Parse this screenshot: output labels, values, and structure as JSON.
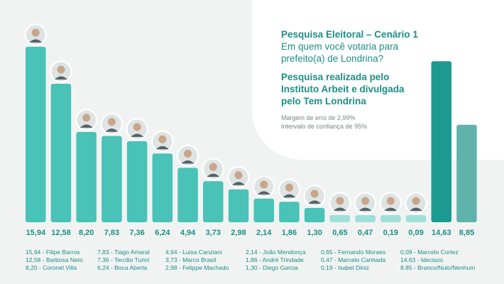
{
  "header": {
    "title": "Pesquisa Eleitoral – Cenário 1",
    "question_line1": "Em quem você votaria para",
    "question_line2": "prefeito(a) de Londrina?",
    "source_line1": "Pesquisa realizada pelo",
    "source_line2": "Instituto Arbeit e divulgada",
    "source_line3": "pelo Tem Londrina",
    "margin": "Margem de erro de 2,99%",
    "confidence": "Intervalo de confiança de 95%"
  },
  "colors": {
    "bar_candidate": "#49c2b7",
    "bar_undecided": "#1c9a8f",
    "bar_blank": "#5fb3ab",
    "text_teal": "#1c8e86"
  },
  "chart_data": {
    "type": "bar",
    "categories": [
      "Filipe Barros",
      "Barbosa Neto",
      "Coronel Villa",
      "Tiago Amaral",
      "Tercilio Turini",
      "Boca Aberta",
      "Luisa Canziani",
      "Marco Brasil",
      "Felippe Machado",
      "João Mendonça",
      "André Trindade",
      "Diego Garcia",
      "Fernando Moraes",
      "Marcelo Canhada",
      "Isabel Diniz",
      "Marcelo Cortez",
      "Idecisos",
      "Branco/Nulo/Nenhum"
    ],
    "values": [
      15.94,
      12.58,
      8.2,
      7.83,
      7.36,
      6.24,
      4.94,
      3.73,
      2.98,
      2.14,
      1.86,
      1.3,
      0.65,
      0.47,
      0.19,
      0.09,
      14.63,
      8.85
    ],
    "value_labels": [
      "15,94",
      "12,58",
      "8,20",
      "7,83",
      "7,36",
      "6,24",
      "4,94",
      "3,73",
      "2,98",
      "2,14",
      "1,86",
      "1,30",
      "0,65",
      "0,47",
      "0,19",
      "0,09",
      "14,63",
      "8,85"
    ],
    "title": "Pesquisa Eleitoral – Cenário 1",
    "xlabel": "",
    "ylabel": "",
    "ylim": [
      0,
      16
    ],
    "grid": false
  },
  "legend": {
    "columns": [
      [
        "15,94 - Filipe Barros",
        "12,58 - Barbosa Neto",
        "8,20 - Coronel Villa"
      ],
      [
        "7,83 - Tiago Amaral",
        "7,36 - Tercilio Turini",
        "6,24 - Boca Aberta"
      ],
      [
        "4,94 - Luisa Canziani",
        "3,73 - Marco Brasil",
        "2,98 - Felippe Machado"
      ],
      [
        "2,14 - João Mendonça",
        "1,86 - André Trindade",
        "1,30 - Diego Garcia"
      ],
      [
        "0,65 - Fernando Moraes",
        "0,47 - Marcelo Canhada",
        "0,19 - Isabel Diniz"
      ],
      [
        "0,09 - Marcelo Cortez",
        "14,63 - Idecisos",
        "8.85 - Branco/Nulo/Nenhum"
      ]
    ]
  }
}
